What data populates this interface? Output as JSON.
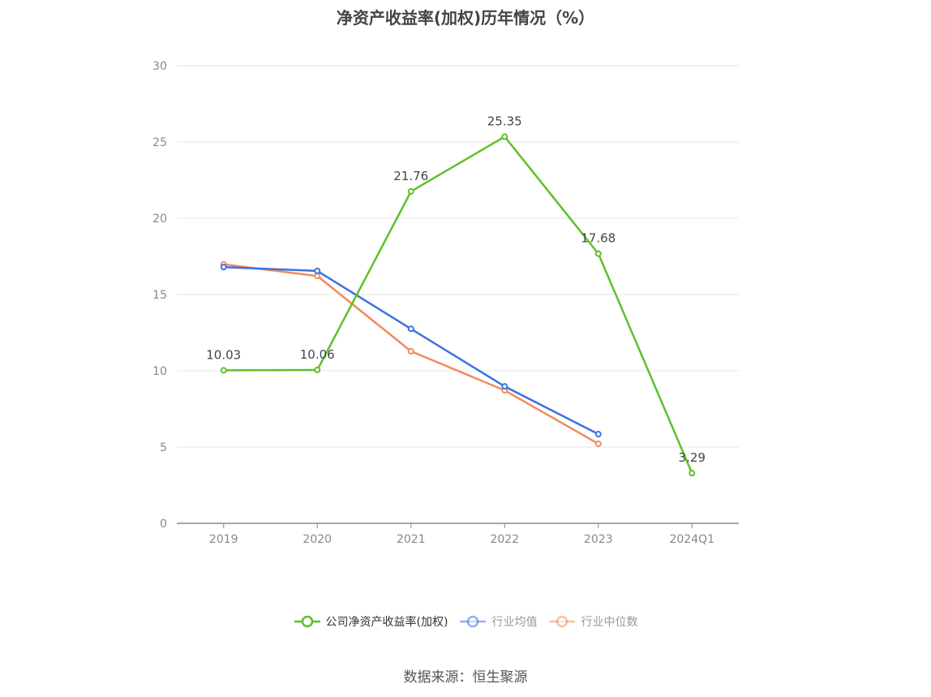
{
  "chart_data": {
    "type": "line",
    "title": "净资产收益率(加权)历年情况（%）",
    "categories": [
      "2019",
      "2020",
      "2021",
      "2022",
      "2023",
      "2024Q1"
    ],
    "ylim": [
      0,
      30
    ],
    "yticks": [
      0,
      5,
      10,
      15,
      20,
      25,
      30
    ],
    "grid": true,
    "legend_position": "bottom",
    "series": [
      {
        "name": "公司净资产收益率(加权)",
        "values": [
          10.03,
          10.06,
          21.76,
          25.35,
          17.68,
          3.29
        ],
        "color": "#5cc12a",
        "labels": true,
        "active": true
      },
      {
        "name": "行业均值",
        "values": [
          16.8,
          16.55,
          12.75,
          8.98,
          5.85,
          null
        ],
        "color": "#3b72e0",
        "labels": false,
        "active": false
      },
      {
        "name": "行业中位数",
        "values": [
          16.98,
          16.22,
          11.28,
          8.72,
          5.22,
          null
        ],
        "color": "#f28a5c",
        "labels": false,
        "active": false
      }
    ]
  },
  "source": "数据来源：恒生聚源"
}
